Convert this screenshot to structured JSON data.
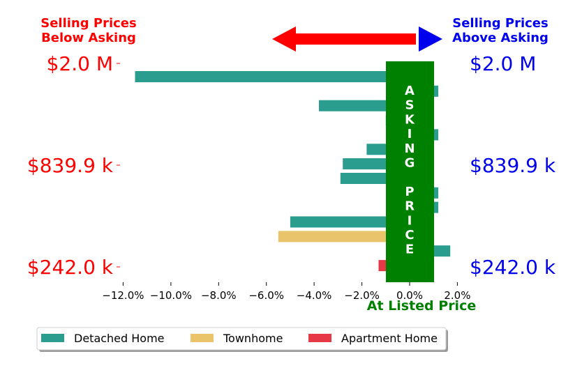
{
  "header": {
    "left_title_line1": "Selling Prices",
    "left_title_line2": "Below Asking",
    "right_title_line1": "Selling Prices",
    "right_title_line2": "Above Asking",
    "left_color": "#ff0000",
    "right_color": "#0000ee"
  },
  "band": {
    "label": "ASKING PRICE",
    "xlabel": "At Listed Price",
    "color": "#008000"
  },
  "legend": {
    "items": [
      {
        "label": "Detached Home",
        "color": "#2a9d8f"
      },
      {
        "label": "Townhome",
        "color": "#e9c46a"
      },
      {
        "label": "Apartment Home",
        "color": "#e63946"
      }
    ]
  },
  "chart_data": {
    "type": "bar",
    "orientation": "horizontal",
    "x_ticks": [
      "−12.0%",
      "−10.0%",
      "−8.0%",
      "−6.0%",
      "−4.0%",
      "−2.0%",
      "0.0%",
      "2.0%"
    ],
    "xlim": [
      -12.2,
      2.6
    ],
    "price_labels": [
      "$2.0 M",
      "$839.9 k",
      "$242.0 k"
    ],
    "bars": [
      {
        "value": -11.5,
        "category": "Detached Home"
      },
      {
        "value": 1.2,
        "category": "Detached Home"
      },
      {
        "value": -3.8,
        "category": "Detached Home"
      },
      {
        "value": -1.0,
        "category": "Detached Home"
      },
      {
        "value": 1.2,
        "category": "Detached Home"
      },
      {
        "value": -1.8,
        "category": "Detached Home"
      },
      {
        "value": -2.8,
        "category": "Detached Home"
      },
      {
        "value": -2.9,
        "category": "Detached Home"
      },
      {
        "value": 1.2,
        "category": "Detached Home"
      },
      {
        "value": 1.2,
        "category": "Detached Home"
      },
      {
        "value": -5.0,
        "category": "Detached Home"
      },
      {
        "value": -5.5,
        "category": "Townhome"
      },
      {
        "value": 1.7,
        "category": "Detached Home"
      },
      {
        "value": -1.3,
        "category": "Apartment Home"
      }
    ]
  }
}
